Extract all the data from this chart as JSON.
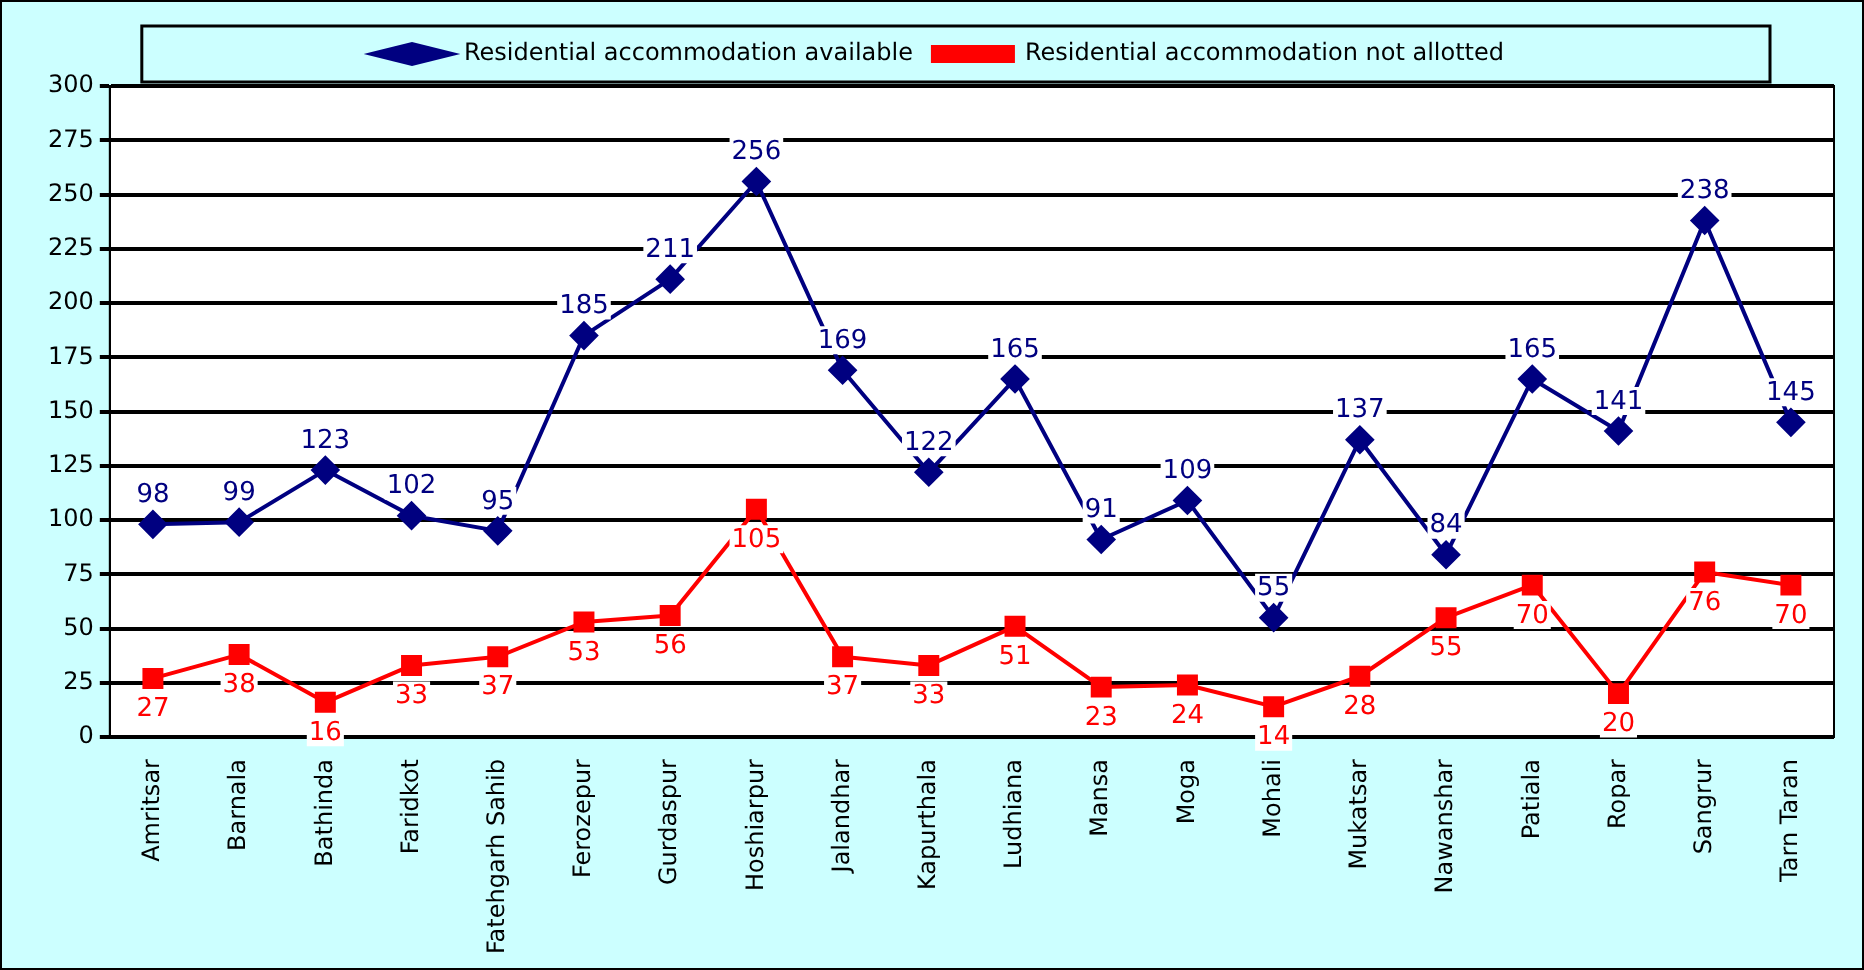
{
  "chart_data": {
    "type": "line",
    "categories": [
      "Amritsar",
      "Barnala",
      "Bathinda",
      "Faridkot",
      "Fatehgarh Sahib",
      "Ferozepur",
      "Gurdaspur",
      "Hoshiarpur",
      "Jalandhar",
      "Kapurthala",
      "Ludhiana",
      "Mansa",
      "Moga",
      "Mohali",
      "Mukatsar",
      "Nawanshar",
      "Patiala",
      "Ropar",
      "Sangrur",
      "Tarn Taran"
    ],
    "series": [
      {
        "name": "Residential accommodation available",
        "color": "#000080",
        "marker": "diamond",
        "values": [
          98,
          99,
          123,
          102,
          95,
          185,
          211,
          256,
          169,
          122,
          165,
          91,
          109,
          55,
          137,
          84,
          165,
          141,
          238,
          145
        ]
      },
      {
        "name": "Residential accommodation not allotted",
        "color": "#ff0000",
        "marker": "square",
        "values": [
          27,
          38,
          16,
          33,
          37,
          53,
          56,
          105,
          37,
          33,
          51,
          23,
          24,
          14,
          28,
          55,
          70,
          20,
          76,
          70
        ]
      }
    ],
    "ylim": [
      0,
      300
    ],
    "yticks": [
      0,
      25,
      50,
      75,
      100,
      125,
      150,
      175,
      200,
      225,
      250,
      275,
      300
    ],
    "grid": "y",
    "legend": "top",
    "data_labels": true,
    "line_style": "solid"
  }
}
